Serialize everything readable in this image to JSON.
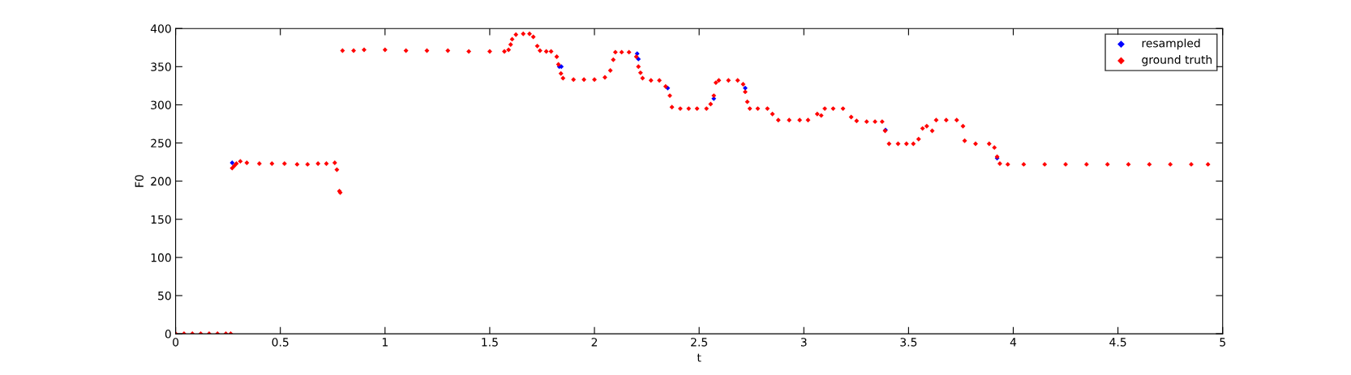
{
  "chart_data": {
    "type": "scatter",
    "xlabel": "t",
    "ylabel": "F0",
    "xlim": [
      0,
      5
    ],
    "ylim": [
      0,
      400
    ],
    "xticks": [
      0,
      0.5,
      1,
      1.5,
      2,
      2.5,
      3,
      3.5,
      4,
      4.5,
      5
    ],
    "yticks": [
      0,
      50,
      100,
      150,
      200,
      250,
      300,
      350,
      400
    ],
    "grid": false,
    "legend": "top right",
    "marker": "diamond",
    "series": [
      {
        "name": "resampled",
        "color": "#0000ff",
        "x": [
          0.27,
          1.832,
          1.842,
          2.204,
          2.21,
          2.35,
          2.57,
          2.72,
          3.39,
          3.923
        ],
        "values": [
          224,
          350,
          350,
          367,
          360,
          322,
          308,
          322,
          267,
          230
        ]
      },
      {
        "name": "ground truth",
        "color": "#ff0000",
        "x": [
          0,
          0.04,
          0.08,
          0.12,
          0.16,
          0.2,
          0.24,
          0.263,
          0.27,
          0.28,
          0.29,
          0.309,
          0.34,
          0.4,
          0.46,
          0.52,
          0.58,
          0.63,
          0.68,
          0.72,
          0.76,
          0.77,
          0.782,
          0.786,
          0.797,
          0.85,
          0.9,
          1.0,
          1.1,
          1.2,
          1.3,
          1.4,
          1.5,
          1.57,
          1.59,
          1.6,
          1.607,
          1.625,
          1.66,
          1.69,
          1.708,
          1.727,
          1.74,
          1.77,
          1.793,
          1.82,
          1.828,
          1.84,
          1.85,
          1.9,
          1.95,
          2.0,
          2.05,
          2.076,
          2.09,
          2.1,
          2.13,
          2.165,
          2.2,
          2.21,
          2.22,
          2.23,
          2.27,
          2.31,
          2.34,
          2.36,
          2.37,
          2.41,
          2.45,
          2.49,
          2.535,
          2.555,
          2.57,
          2.58,
          2.594,
          2.64,
          2.684,
          2.71,
          2.72,
          2.73,
          2.742,
          2.78,
          2.826,
          2.85,
          2.878,
          2.93,
          2.98,
          3.02,
          3.064,
          3.083,
          3.1,
          3.14,
          3.187,
          3.226,
          3.252,
          3.3,
          3.34,
          3.374,
          3.388,
          3.407,
          3.45,
          3.49,
          3.523,
          3.548,
          3.567,
          3.587,
          3.613,
          3.632,
          3.68,
          3.73,
          3.76,
          3.768,
          3.82,
          3.885,
          3.91,
          3.923,
          3.936,
          3.974,
          4.05,
          4.15,
          4.25,
          4.35,
          4.45,
          4.55,
          4.65,
          4.75,
          4.85,
          4.93
        ],
        "values": [
          0,
          0,
          0,
          0,
          0,
          0,
          0,
          0,
          217,
          220,
          223,
          226,
          224,
          223,
          223,
          223,
          222,
          222,
          223,
          223,
          224,
          215,
          187,
          185,
          371,
          371,
          372,
          372,
          371,
          371,
          371,
          370,
          370,
          370,
          372,
          379,
          386,
          392,
          393,
          393,
          389,
          377,
          371,
          370,
          370,
          363,
          353,
          341,
          335,
          333,
          333,
          333,
          336,
          345,
          359,
          369,
          369,
          369,
          363,
          350,
          342,
          335,
          332,
          332,
          324,
          312,
          297,
          295,
          295,
          295,
          295,
          301,
          312,
          329,
          332,
          332,
          332,
          327,
          317,
          304,
          295,
          295,
          295,
          288,
          280,
          280,
          280,
          280,
          288,
          286,
          295,
          295,
          295,
          284,
          279,
          278,
          278,
          278,
          266,
          249,
          249,
          249,
          249,
          255,
          269,
          272,
          266,
          280,
          280,
          280,
          272,
          253,
          249,
          249,
          244,
          232,
          223,
          222,
          222,
          222,
          222,
          222,
          222,
          222,
          222,
          222,
          222,
          222
        ]
      }
    ]
  }
}
